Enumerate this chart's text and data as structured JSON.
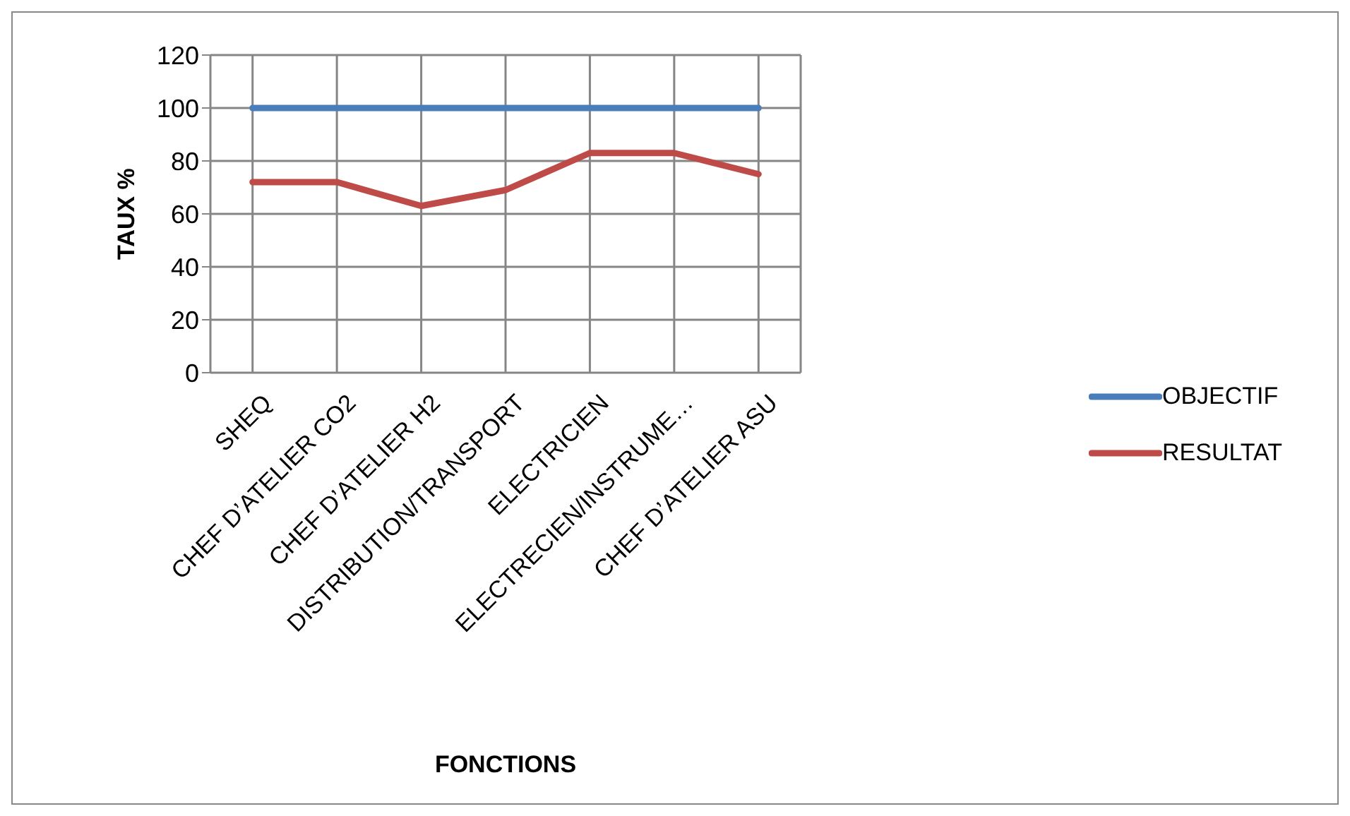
{
  "chart_data": {
    "type": "line",
    "xlabel": "FONCTIONS",
    "ylabel": "TAUX %",
    "categories": [
      "SHEQ",
      "CHEF D’ATELIER CO2",
      "CHEF D’ATELIER H2",
      "DISTRIBUTION/TRANSPORT",
      "ELECTRICIEN",
      "ELECTRECIEN/INSTRUME…",
      "CHEF D’ATELIER ASU"
    ],
    "series": [
      {
        "name": "OBJECTIF",
        "color": "#4a7ebb",
        "values": [
          100,
          100,
          100,
          100,
          100,
          100,
          100
        ]
      },
      {
        "name": "RESULTAT",
        "color": "#be4b48",
        "values": [
          72,
          72,
          63,
          69,
          83,
          83,
          75
        ]
      }
    ],
    "ylim": [
      0,
      120
    ],
    "yticks": [
      0,
      20,
      40,
      60,
      80,
      100,
      120
    ],
    "grid": true,
    "legend": "right",
    "marker": "none",
    "line_style": "solid"
  }
}
